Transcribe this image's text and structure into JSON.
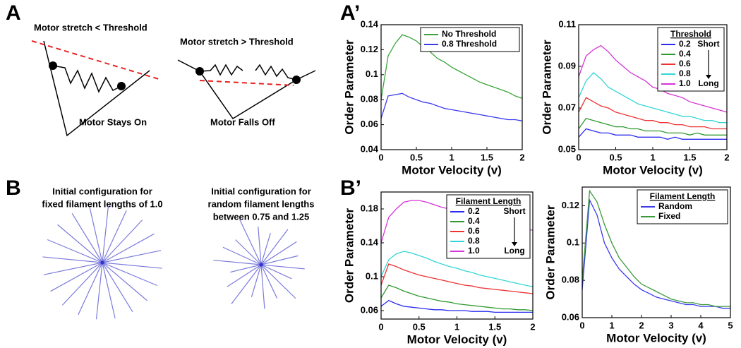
{
  "panel_labels": [
    "A",
    "A’",
    "B",
    "B’"
  ],
  "diagram_a": {
    "left": {
      "title": "Motor stretch < Threshold",
      "caption": "Motor Stays On"
    },
    "right": {
      "title": "Motor stretch > Threshold",
      "caption": "Motor Falls Off"
    }
  },
  "diagram_b": {
    "left": {
      "lines": [
        "Initial configuration for",
        "fixed filament lengths of 1.0"
      ]
    },
    "right": {
      "lines": [
        "Initial configuration for",
        "random filament lengths",
        "between 0.75 and 1.25"
      ]
    }
  },
  "chart_data": [
    {
      "type": "line",
      "xlabel": "Motor Velocity (v)",
      "ylabel": "Order Parameter",
      "x": [
        0,
        0.1,
        0.2,
        0.3,
        0.4,
        0.5,
        0.6,
        0.7,
        0.8,
        0.9,
        1,
        1.1,
        1.2,
        1.3,
        1.4,
        1.5,
        1.6,
        1.7,
        1.8,
        1.9,
        2
      ],
      "xlim": [
        0,
        2
      ],
      "xticks": [
        0,
        0.5,
        1,
        1.5,
        2
      ],
      "ylim": [
        0.04,
        0.14
      ],
      "yticks": [
        0.04,
        0.06,
        0.08,
        0.1,
        0.12,
        0.14
      ],
      "legend_position": "upper right",
      "series": [
        {
          "name": "No Threshold",
          "color": "#3aa33a",
          "values": [
            0.08,
            0.115,
            0.125,
            0.132,
            0.13,
            0.127,
            0.122,
            0.118,
            0.113,
            0.11,
            0.106,
            0.103,
            0.1,
            0.097,
            0.094,
            0.092,
            0.09,
            0.088,
            0.086,
            0.083,
            0.081
          ]
        },
        {
          "name": "0.8 Threshold",
          "color": "#3b3bee",
          "values": [
            0.065,
            0.083,
            0.084,
            0.085,
            0.082,
            0.08,
            0.078,
            0.077,
            0.075,
            0.073,
            0.072,
            0.071,
            0.07,
            0.069,
            0.068,
            0.067,
            0.066,
            0.065,
            0.064,
            0.064,
            0.063
          ]
        }
      ]
    },
    {
      "type": "line",
      "xlabel": "Motor Velocity (v)",
      "ylabel": "Order Parameter",
      "x": [
        0,
        0.1,
        0.2,
        0.3,
        0.4,
        0.5,
        0.6,
        0.7,
        0.8,
        0.9,
        1,
        1.1,
        1.2,
        1.3,
        1.4,
        1.5,
        1.6,
        1.7,
        1.8,
        1.9,
        2
      ],
      "xlim": [
        0,
        2
      ],
      "xticks": [
        0,
        0.5,
        1,
        1.5,
        2
      ],
      "ylim": [
        0.05,
        0.11
      ],
      "yticks": [
        0.05,
        0.07,
        0.09,
        0.11
      ],
      "legend_position": "upper right",
      "legend_title": "Threshold",
      "legend_notes": [
        "Short",
        "Long"
      ],
      "series": [
        {
          "name": "0.2",
          "color": "#2a2af0",
          "values": [
            0.056,
            0.06,
            0.059,
            0.058,
            0.058,
            0.057,
            0.057,
            0.057,
            0.056,
            0.056,
            0.056,
            0.056,
            0.055,
            0.056,
            0.055,
            0.055,
            0.055,
            0.055,
            0.055,
            0.055,
            0.055
          ]
        },
        {
          "name": "0.4",
          "color": "#2f9a2f",
          "values": [
            0.06,
            0.065,
            0.064,
            0.063,
            0.062,
            0.061,
            0.061,
            0.06,
            0.06,
            0.059,
            0.059,
            0.059,
            0.058,
            0.058,
            0.058,
            0.057,
            0.058,
            0.057,
            0.057,
            0.057,
            0.057
          ]
        },
        {
          "name": "0.6",
          "color": "#ee3333",
          "values": [
            0.068,
            0.075,
            0.073,
            0.071,
            0.07,
            0.068,
            0.067,
            0.066,
            0.065,
            0.064,
            0.064,
            0.063,
            0.063,
            0.062,
            0.062,
            0.061,
            0.061,
            0.061,
            0.06,
            0.06,
            0.06
          ]
        },
        {
          "name": "0.8",
          "color": "#33d6d6",
          "values": [
            0.075,
            0.083,
            0.087,
            0.084,
            0.08,
            0.078,
            0.076,
            0.074,
            0.072,
            0.071,
            0.07,
            0.069,
            0.068,
            0.067,
            0.066,
            0.066,
            0.065,
            0.064,
            0.064,
            0.063,
            0.063
          ]
        },
        {
          "name": "1.0",
          "color": "#d633d6",
          "values": [
            0.085,
            0.095,
            0.098,
            0.1,
            0.097,
            0.093,
            0.09,
            0.087,
            0.085,
            0.083,
            0.08,
            0.079,
            0.077,
            0.076,
            0.075,
            0.073,
            0.072,
            0.071,
            0.07,
            0.069,
            0.068
          ]
        }
      ]
    },
    {
      "type": "line",
      "xlabel": "Motor Velocity (v)",
      "ylabel": "Order Parameter",
      "x": [
        0,
        0.1,
        0.2,
        0.3,
        0.4,
        0.5,
        0.6,
        0.7,
        0.8,
        0.9,
        1,
        1.1,
        1.2,
        1.3,
        1.4,
        1.5,
        1.6,
        1.7,
        1.8,
        1.9,
        2
      ],
      "xlim": [
        0,
        2
      ],
      "xticks": [
        0,
        0.5,
        1,
        1.5,
        2
      ],
      "ylim": [
        0.05,
        0.2
      ],
      "yticks": [
        0.06,
        0.1,
        0.14,
        0.18
      ],
      "legend_position": "upper right",
      "legend_title": "Filament Length",
      "legend_notes": [
        "Short",
        "Long"
      ],
      "series": [
        {
          "name": "0.2",
          "color": "#2a2af0",
          "values": [
            0.065,
            0.072,
            0.068,
            0.065,
            0.064,
            0.063,
            0.062,
            0.061,
            0.061,
            0.06,
            0.06,
            0.06,
            0.059,
            0.059,
            0.059,
            0.058,
            0.058,
            0.058,
            0.058,
            0.058,
            0.058
          ]
        },
        {
          "name": "0.4",
          "color": "#2f9a2f",
          "values": [
            0.075,
            0.09,
            0.087,
            0.083,
            0.08,
            0.077,
            0.075,
            0.073,
            0.071,
            0.07,
            0.068,
            0.067,
            0.066,
            0.065,
            0.064,
            0.063,
            0.062,
            0.062,
            0.061,
            0.061,
            0.06
          ]
        },
        {
          "name": "0.6",
          "color": "#ee3333",
          "values": [
            0.09,
            0.115,
            0.112,
            0.108,
            0.105,
            0.102,
            0.1,
            0.098,
            0.096,
            0.094,
            0.092,
            0.09,
            0.089,
            0.087,
            0.086,
            0.085,
            0.084,
            0.083,
            0.082,
            0.081,
            0.08
          ]
        },
        {
          "name": "0.8",
          "color": "#33d6d6",
          "values": [
            0.1,
            0.12,
            0.127,
            0.13,
            0.128,
            0.125,
            0.122,
            0.118,
            0.115,
            0.112,
            0.11,
            0.107,
            0.105,
            0.102,
            0.1,
            0.098,
            0.096,
            0.094,
            0.092,
            0.09,
            0.088
          ]
        },
        {
          "name": "1.0",
          "color": "#d633d6",
          "values": [
            0.14,
            0.17,
            0.18,
            0.188,
            0.19,
            0.19,
            0.188,
            0.185,
            0.182,
            0.18,
            0.177,
            0.175,
            0.172,
            0.17,
            0.168,
            0.165,
            0.163,
            0.16,
            0.158,
            0.156,
            0.155
          ]
        }
      ]
    },
    {
      "type": "line",
      "xlabel": "Motor Velocity (v)",
      "ylabel": "Order Parameter",
      "x": [
        0,
        0.25,
        0.5,
        0.75,
        1,
        1.25,
        1.5,
        1.75,
        2,
        2.25,
        2.5,
        2.75,
        3,
        3.25,
        3.5,
        3.75,
        4,
        4.25,
        4.5,
        4.75,
        5
      ],
      "xlim": [
        0,
        5
      ],
      "xticks": [
        0,
        1,
        2,
        3,
        4,
        5
      ],
      "ylim": [
        0.06,
        0.13
      ],
      "yticks": [
        0.06,
        0.08,
        0.1,
        0.12
      ],
      "legend_position": "upper right",
      "legend_title": "Filament Length",
      "series": [
        {
          "name": "Random",
          "color": "#3b3bee",
          "values": [
            0.075,
            0.123,
            0.115,
            0.1,
            0.092,
            0.086,
            0.082,
            0.078,
            0.075,
            0.073,
            0.071,
            0.07,
            0.069,
            0.068,
            0.067,
            0.067,
            0.066,
            0.066,
            0.066,
            0.065,
            0.065
          ]
        },
        {
          "name": "Fixed",
          "color": "#3a9a3a",
          "values": [
            0.08,
            0.128,
            0.122,
            0.11,
            0.1,
            0.092,
            0.087,
            0.082,
            0.078,
            0.076,
            0.074,
            0.072,
            0.07,
            0.069,
            0.068,
            0.068,
            0.067,
            0.067,
            0.066,
            0.066,
            0.066
          ]
        }
      ]
    }
  ]
}
